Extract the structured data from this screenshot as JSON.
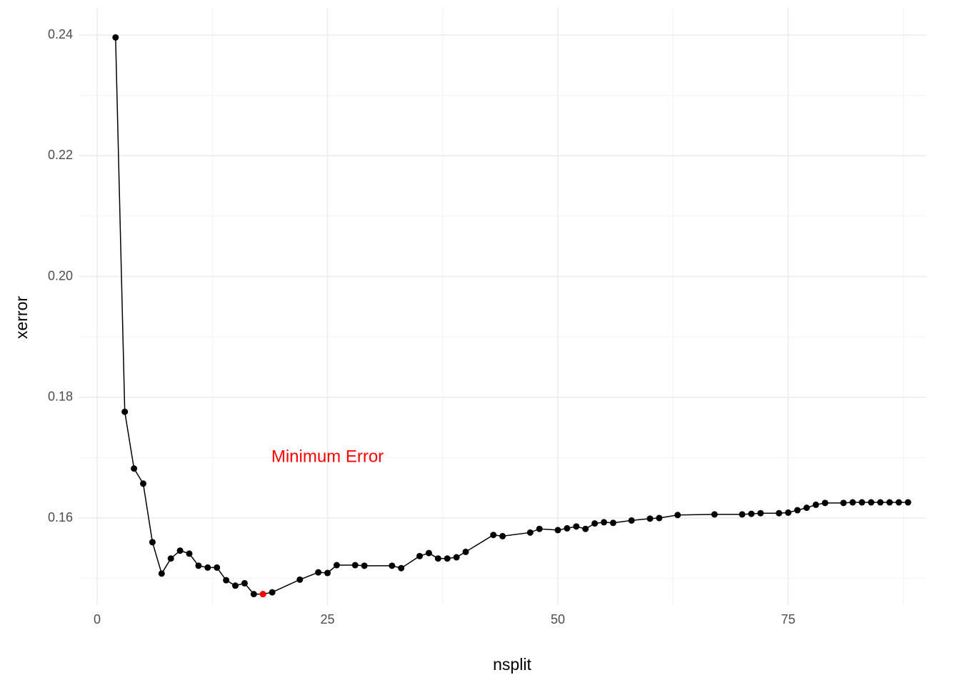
{
  "chart_data": {
    "type": "line",
    "x_label": "nsplit",
    "y_label": "xerror",
    "x": [
      2,
      3,
      4,
      5,
      6,
      7,
      8,
      9,
      10,
      11,
      12,
      13,
      14,
      15,
      16,
      17,
      18,
      19,
      22,
      24,
      25,
      26,
      28,
      29,
      32,
      33,
      35,
      36,
      37,
      38,
      39,
      40,
      43,
      44,
      47,
      48,
      50,
      51,
      52,
      53,
      54,
      55,
      56,
      58,
      60,
      61,
      63,
      67,
      70,
      71,
      72,
      74,
      75,
      76,
      77,
      78,
      79,
      81,
      82,
      83,
      84,
      85,
      86,
      87,
      88
    ],
    "series": [
      {
        "color": "#000000",
        "values": [
          0.2396,
          0.1776,
          0.1682,
          0.1657,
          0.156,
          0.1508,
          0.1533,
          0.1546,
          0.1541,
          0.1521,
          0.1518,
          0.1518,
          0.1497,
          0.1488,
          0.1492,
          0.1474,
          0.1474,
          0.1477,
          0.1498,
          0.151,
          0.1509,
          0.1522,
          0.1522,
          0.1521,
          0.1521,
          0.1517,
          0.1537,
          0.1542,
          0.1533,
          0.1533,
          0.1535,
          0.1544,
          0.1572,
          0.157,
          0.1576,
          0.1582,
          0.158,
          0.1583,
          0.1586,
          0.1582,
          0.1591,
          0.1593,
          0.1592,
          0.1596,
          0.1599,
          0.16,
          0.1605,
          0.1606,
          0.1606,
          0.1607,
          0.1608,
          0.1608,
          0.1609,
          0.1613,
          0.1617,
          0.1622,
          0.1625,
          0.1625,
          0.1626,
          0.1626,
          0.1626,
          0.1626,
          0.1626,
          0.1626,
          0.1626
        ]
      }
    ],
    "highlight": {
      "x": 18,
      "y": 0.1474,
      "color": "#ff0000"
    },
    "annotation": {
      "text": "Minimum Error",
      "x": 25,
      "y": 0.17,
      "color": "#ff0000"
    },
    "xlim": [
      -2,
      90
    ],
    "ylim": [
      0.1455,
      0.2445
    ],
    "xticks": [
      0,
      25,
      50,
      75
    ],
    "yticks": [
      0.16,
      0.18,
      {
        "value": 0.2,
        "label": "0.20"
      },
      0.22,
      0.24
    ],
    "minor_xticks": [
      12.5,
      37.5,
      62.5,
      87.5
    ],
    "minor_yticks": [
      0.15,
      0.17,
      0.19,
      0.21,
      0.23
    ],
    "grid": true
  }
}
